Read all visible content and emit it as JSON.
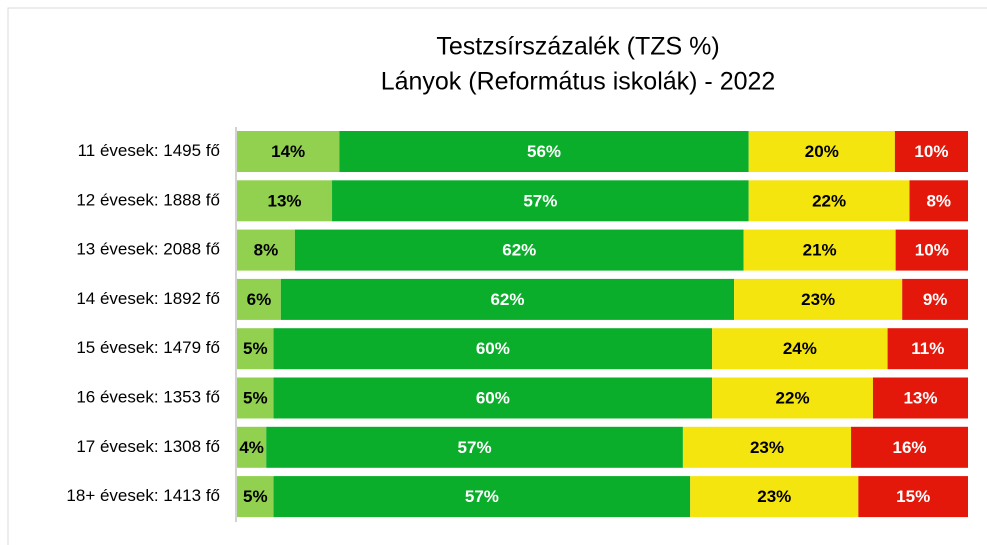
{
  "chart_data": {
    "type": "bar",
    "horizontal": true,
    "stacked": true,
    "percent": true,
    "title": "Testzsírszázalék (TZS %)",
    "subtitle": "Lányok (Református iskolák) - 2022",
    "categories": [
      "11 évesek: 1495 fő",
      "12 évesek: 1888 fő",
      "13 évesek: 2088 fő",
      "14 évesek: 1892 fő",
      "15 évesek: 1479 fő",
      "16 évesek: 1353 fő",
      "17 évesek: 1308 fő",
      "18+ évesek: 1413 fő"
    ],
    "series": [
      {
        "color": "#92d050",
        "label_color": "#000000",
        "values": [
          14,
          13,
          8,
          6,
          5,
          5,
          4,
          5
        ],
        "value_labels": [
          "14%",
          "13%",
          "8%",
          "6%",
          "5%",
          "5%",
          "4%",
          "5%"
        ]
      },
      {
        "color": "#0aae2b",
        "label_color": "#ffffff",
        "values": [
          56,
          57,
          62,
          62,
          60,
          60,
          57,
          57
        ],
        "value_labels": [
          "56%",
          "57%",
          "62%",
          "62%",
          "60%",
          "60%",
          "57%",
          "57%"
        ]
      },
      {
        "color": "#f5e50f",
        "label_color": "#000000",
        "values": [
          20,
          22,
          21,
          23,
          24,
          22,
          23,
          23
        ],
        "value_labels": [
          "20%",
          "22%",
          "21%",
          "23%",
          "24%",
          "22%",
          "23%",
          "23%"
        ]
      },
      {
        "color": "#e3170a",
        "label_color": "#ffffff",
        "values": [
          10,
          8,
          10,
          9,
          11,
          13,
          16,
          15
        ],
        "value_labels": [
          "10%",
          "8%",
          "10%",
          "9%",
          "11%",
          "13%",
          "16%",
          "15%"
        ]
      }
    ]
  }
}
